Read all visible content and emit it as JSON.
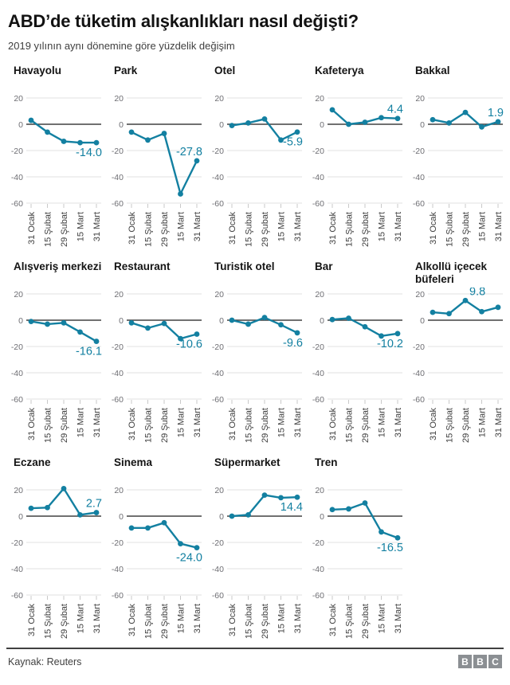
{
  "header": {
    "title": "ABD’de tüketim alışkanlıkları nasıl değişti?",
    "subtitle": "2019 yılının aynı dönemine göre yüzdelik değişim"
  },
  "axes": {
    "categories": [
      "31 Ocak",
      "15 Şubat",
      "29 Şubat",
      "15 Mart",
      "31 Mart"
    ],
    "y_ticks": [
      20,
      0,
      -20,
      -40,
      -60
    ],
    "ylim": [
      -60,
      20
    ],
    "grid": true
  },
  "colors": {
    "line": "#1380A1",
    "annotation": "#1380A1",
    "zero_axis": "#404040",
    "gridline": "#e2e2e2",
    "tick_mark": "#c9c9c9",
    "y_tick_label": "#6e6e73",
    "x_tick_label": "#404040"
  },
  "chart_data": [
    {
      "id": "havayolu",
      "type": "line",
      "title": "Havayolu",
      "values": [
        3,
        -6,
        -13,
        -14,
        -14
      ],
      "annotation": "-14.0",
      "label_at": 4,
      "label_side": "below"
    },
    {
      "id": "park",
      "type": "line",
      "title": "Park",
      "values": [
        -6,
        -12,
        -7,
        -53,
        -27.8
      ],
      "annotation": "-27.8",
      "label_at": 4,
      "label_side": "above"
    },
    {
      "id": "otel",
      "type": "line",
      "title": "Otel",
      "values": [
        -1,
        1,
        4,
        -12,
        -5.9
      ],
      "annotation": "-5.9",
      "label_at": 4,
      "label_side": "below"
    },
    {
      "id": "kafeterya",
      "type": "line",
      "title": "Kafeterya",
      "values": [
        11,
        0,
        1.5,
        5,
        4.4
      ],
      "annotation": "4.4",
      "label_at": 4,
      "label_side": "above"
    },
    {
      "id": "bakkal",
      "type": "line",
      "title": "Bakkal",
      "values": [
        3.5,
        1,
        9,
        -2,
        1.9
      ],
      "annotation": "1.9",
      "label_at": 4,
      "label_side": "above"
    },
    {
      "id": "alisveris-merkezi",
      "type": "line",
      "title": "Alışveriş merkezi",
      "values": [
        -1,
        -3,
        -2,
        -9,
        -16.1
      ],
      "annotation": "-16.1",
      "label_at": 4,
      "label_side": "below"
    },
    {
      "id": "restaurant",
      "type": "line",
      "title": "Restaurant",
      "values": [
        -2,
        -6,
        -2.5,
        -14,
        -10.6
      ],
      "annotation": "-10.6",
      "label_at": 4,
      "label_side": "below"
    },
    {
      "id": "turistik-otel",
      "type": "line",
      "title": "Turistik otel",
      "values": [
        0,
        -3,
        2,
        -3.5,
        -9.6
      ],
      "annotation": "-9.6",
      "label_at": 4,
      "label_side": "below"
    },
    {
      "id": "bar",
      "type": "line",
      "title": "Bar",
      "values": [
        0.5,
        1.5,
        -5,
        -12,
        -10.2
      ],
      "annotation": "-10.2",
      "label_at": 4,
      "label_side": "below"
    },
    {
      "id": "alkollu-icecek-bufeleri",
      "type": "line",
      "title": "Alkollü içecek büfeleri",
      "values": [
        6,
        5,
        15,
        6.5,
        9.8
      ],
      "annotation": "9.8",
      "label_at": 2,
      "label_side": "above"
    },
    {
      "id": "eczane",
      "type": "line",
      "title": "Eczane",
      "values": [
        6,
        6.5,
        21,
        1,
        2.7
      ],
      "annotation": "2.7",
      "label_at": 4,
      "label_side": "above"
    },
    {
      "id": "sinema",
      "type": "line",
      "title": "Sinema",
      "values": [
        -9,
        -9,
        -5,
        -21,
        -24
      ],
      "annotation": "-24.0",
      "label_at": 4,
      "label_side": "below"
    },
    {
      "id": "supermarket",
      "type": "line",
      "title": "Süpermarket",
      "values": [
        0,
        1,
        16,
        14,
        14.4
      ],
      "annotation": "14.4",
      "label_at": 4,
      "label_side": "below"
    },
    {
      "id": "tren",
      "type": "line",
      "title": "Tren",
      "values": [
        5,
        5.5,
        10,
        -12,
        -16.5
      ],
      "annotation": "-16.5",
      "label_at": 4,
      "label_side": "below"
    }
  ],
  "footer": {
    "source": "Kaynak: Reuters",
    "logo": [
      "B",
      "B",
      "C"
    ]
  }
}
